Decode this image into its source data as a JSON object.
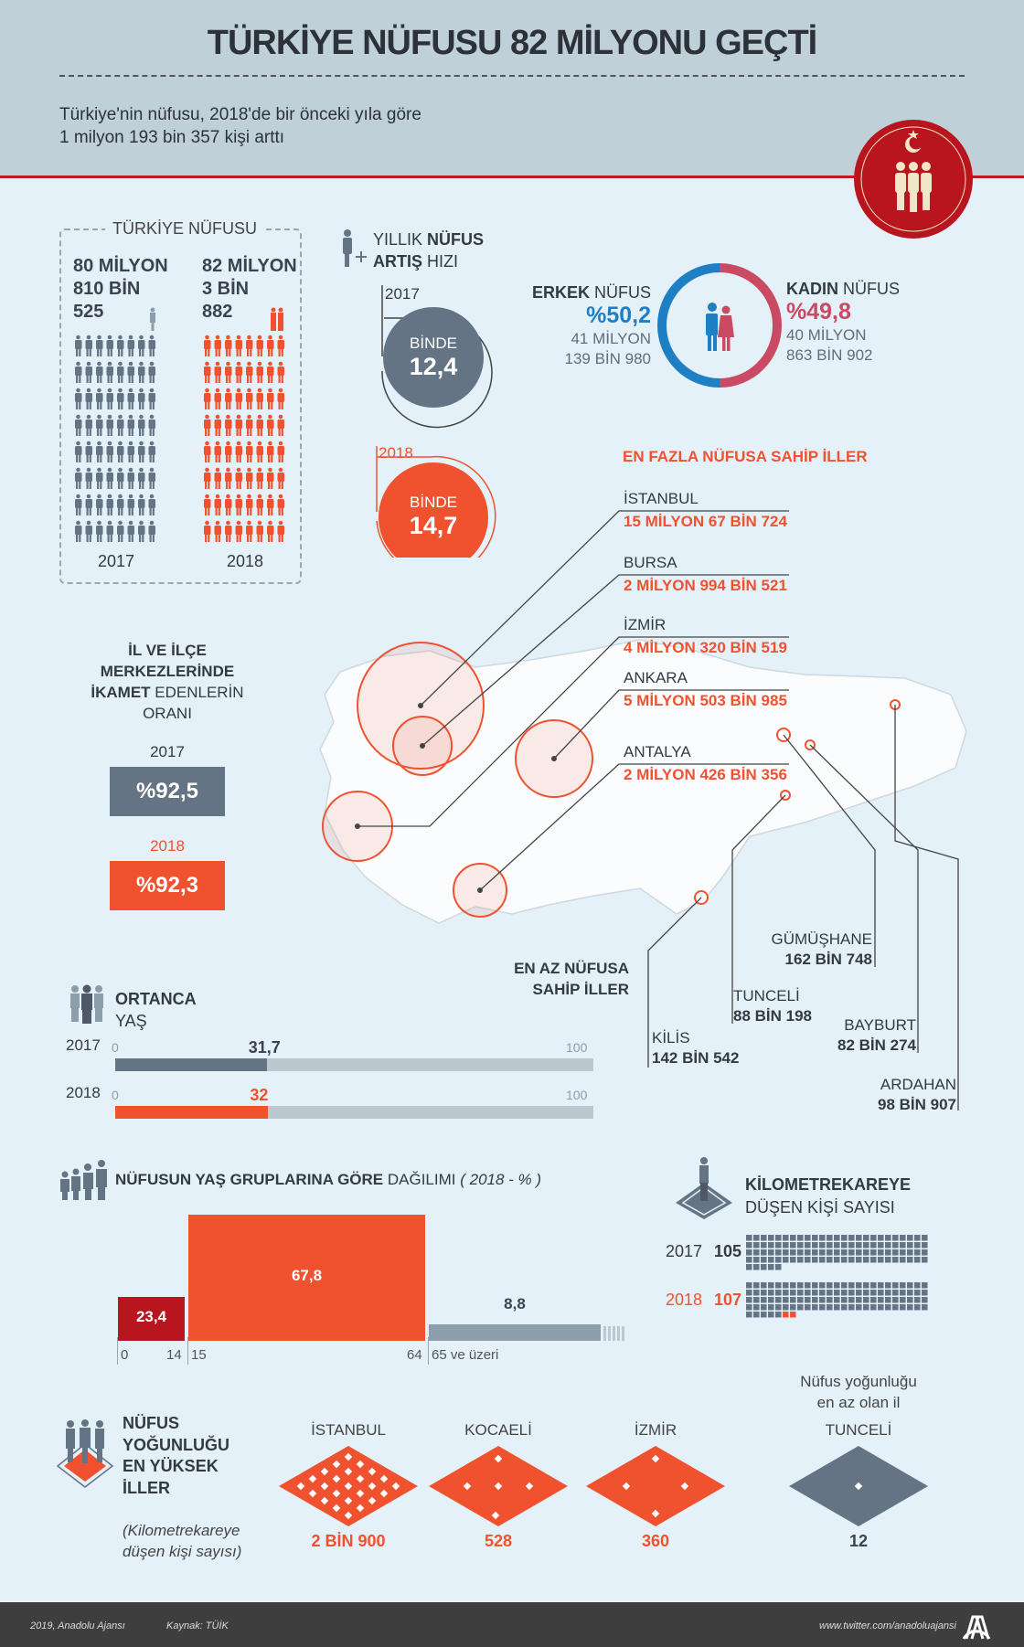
{
  "header": {
    "title": "TÜRKİYE NÜFUSU 82 MİLYONU GEÇTİ",
    "subtitle_line1": "Türkiye'nin nüfusu, 2018'de bir önceki yıla göre",
    "subtitle_line2": "1 milyon 193 bin 357 kişi arttı"
  },
  "population": {
    "title": "TÜRKİYE NÜFUSU",
    "y2017": {
      "l1": "80 MİLYON",
      "l2": "810 BİN",
      "l3": "525",
      "year": "2017"
    },
    "y2018": {
      "l1": "82 MİLYON",
      "l2": "3 BİN",
      "l3": "882",
      "year": "2018"
    }
  },
  "growth": {
    "title_a": "YILLIK ",
    "title_b": "NÜFUS",
    "title_c": "ARTIŞ",
    "title_d": " HIZI",
    "y2017": {
      "year": "2017",
      "unit": "BİNDE",
      "value": "12,4"
    },
    "y2018": {
      "year": "2018",
      "unit": "BİNDE",
      "value": "14,7"
    }
  },
  "gender": {
    "male": {
      "label_b": "ERKEK",
      "label": " NÜFUS",
      "pct": "%50,2",
      "l1": "41 MİLYON",
      "l2": "139 BİN 980",
      "color": "#1e7fc5"
    },
    "female": {
      "label_b": "KADIN",
      "label": " NÜFUS",
      "pct": "%49,8",
      "l1": "40 MİLYON",
      "l2": "863 BİN 902",
      "color": "#c94a62"
    }
  },
  "most_populous": {
    "title": "EN FAZLA NÜFUSA SAHİP İLLER",
    "items": [
      {
        "name": "İSTANBUL",
        "value": "15 MİLYON 67 BİN 724"
      },
      {
        "name": "BURSA",
        "value": "2 MİLYON 994 BİN 521"
      },
      {
        "name": "İZMİR",
        "value": "4 MİLYON 320 BİN 519"
      },
      {
        "name": "ANKARA",
        "value": "5 MİLYON 503 BİN 985"
      },
      {
        "name": "ANTALYA",
        "value": "2 MİLYON 426 BİN 356"
      }
    ]
  },
  "least_populous": {
    "title_l1": "EN AZ NÜFUSA",
    "title_l2": "SAHİP İLLER",
    "items": [
      {
        "name": "KİLİS",
        "value": "142 BİN 542"
      },
      {
        "name": "TUNCELİ",
        "value": "88 BİN 198"
      },
      {
        "name": "GÜMÜŞHANE",
        "value": "162 BİN 748"
      },
      {
        "name": "BAYBURT",
        "value": "82 BİN 274"
      },
      {
        "name": "ARDAHAN",
        "value": "98 BİN 907"
      }
    ]
  },
  "urban": {
    "l1": "İL VE İLÇE",
    "l2": "MERKEZLERİNDE",
    "l3b": "İKAMET",
    "l3": " EDENLERİN",
    "l4": "ORANI",
    "y2017": "2017",
    "v2017": "%92,5",
    "y2018": "2018",
    "v2018": "%92,3"
  },
  "median_age": {
    "title_b": "ORTANCA",
    "title": "YAŞ",
    "min": "0",
    "max": "100",
    "rows": [
      {
        "year": "2017",
        "value": 31.7,
        "label": "31,7"
      },
      {
        "year": "2018",
        "value": 32,
        "label": "32"
      }
    ]
  },
  "age_groups": {
    "title_b": "NÜFUSUN YAŞ GRUPLARINA GÖRE",
    "title": " DAĞILIMI",
    "note": "( 2018 - % )",
    "groups": [
      {
        "value": 23.4,
        "label": "23,4",
        "from": "0",
        "to": "14",
        "color": "#b8151e"
      },
      {
        "value": 67.8,
        "label": "67,8",
        "from": "15",
        "to": "64",
        "color": "#f05230"
      },
      {
        "value": 8.8,
        "label": "8,8",
        "from": "65 ve üzeri",
        "to": "",
        "color": "#8c9dab"
      }
    ]
  },
  "density_km2": {
    "title_b": "KİLOMETREKAREYE",
    "title": "DÜŞEN KİŞİ SAYISI",
    "rows": [
      {
        "year": "2017",
        "value": 105
      },
      {
        "year": "2018",
        "value": 107
      }
    ]
  },
  "density_top": {
    "title": [
      "NÜFUS",
      "YOĞUNLUĞU",
      "EN YÜKSEK",
      "İLLER"
    ],
    "note_l1": "(Kilometrekareye",
    "note_l2": "düşen kişi sayısı)",
    "least_note_l1": "Nüfus yoğunluğu",
    "least_note_l2": "en az olan il",
    "items": [
      {
        "name": "İSTANBUL",
        "value": "2 BİN 900",
        "color": "#f05230"
      },
      {
        "name": "KOCAELİ",
        "value": "528",
        "color": "#f05230"
      },
      {
        "name": "İZMİR",
        "value": "360",
        "color": "#f05230"
      },
      {
        "name": "TUNCELİ",
        "value": "12",
        "color": "#647484"
      }
    ]
  },
  "footer": {
    "copyright": "2019, Anadolu Ajansı",
    "source": "Kaynak: TÜİK",
    "twitter": "www.twitter.com/anadoluajansi",
    "logo": "AA"
  },
  "colors": {
    "orange": "#f05230",
    "gray": "#647484",
    "red": "#c01a20"
  }
}
